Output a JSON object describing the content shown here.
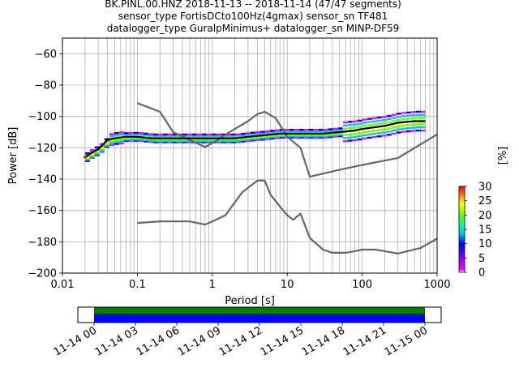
{
  "title_lines": [
    "BK.PINL.00.HNZ   2018-11-13 -- 2018-11-14  (47/47 segments)",
    "sensor_type FortisDCto100Hz(4gmax) sensor_sn TF481",
    "datalogger_type GuralpMinimus+ datalogger_sn MINP-DF59"
  ],
  "chart_data": {
    "type": "line",
    "title": "BK.PINL.00.HNZ   2018-11-13 -- 2018-11-14  (47/47 segments)",
    "xlabel": "Period [s]",
    "ylabel": "Power [dB]",
    "x_scale": "log",
    "xlim": [
      0.01,
      1000
    ],
    "ylim": [
      -200,
      -50
    ],
    "grid": true,
    "x_ticks": [
      0.01,
      0.1,
      1,
      10,
      100,
      1000
    ],
    "x_tick_labels": [
      "0.01",
      "0.1",
      "1",
      "10",
      "100",
      "1000"
    ],
    "y_ticks": [
      -200,
      -180,
      -160,
      -140,
      -120,
      -100,
      -80,
      -60
    ],
    "y_tick_labels": [
      "−200",
      "−180",
      "−160",
      "−140",
      "−120",
      "−100",
      "−80",
      "−60"
    ],
    "series": [
      {
        "style": "black",
        "x": [
          0.02,
          0.025,
          0.03,
          0.04,
          0.05,
          0.07,
          0.1,
          0.15,
          0.2,
          0.3,
          0.5,
          0.8,
          1,
          2,
          3,
          5,
          8,
          10,
          20,
          30,
          50,
          80,
          100,
          200,
          300,
          500,
          700
        ],
        "y": [
          -126,
          -123,
          -121,
          -115,
          -114,
          -113,
          -113,
          -114,
          -114,
          -114,
          -114,
          -114,
          -114,
          -114,
          -113,
          -112,
          -111,
          -111,
          -111,
          -111,
          -110,
          -109,
          -108,
          -106,
          -104,
          -103,
          -103
        ]
      },
      {
        "style": "gray",
        "x": [
          0.1,
          0.2,
          0.3,
          0.5,
          0.8,
          1,
          2,
          3,
          4,
          5,
          7,
          10,
          15,
          20,
          50,
          100,
          300,
          1000
        ],
        "y": [
          -91.5,
          -97,
          -110,
          -115,
          -119.5,
          -117,
          -108,
          -103,
          -98.5,
          -97,
          -101,
          -113,
          -120,
          -138.5,
          -134,
          -131,
          -126.5,
          -111.5
        ]
      },
      {
        "style": "gray",
        "x": [
          0.1,
          0.2,
          0.3,
          0.5,
          0.8,
          1,
          1.5,
          2.5,
          4,
          5,
          6,
          8,
          10,
          12,
          15,
          20,
          30,
          40,
          60,
          80,
          100,
          150,
          200,
          300,
          600,
          1000
        ],
        "y": [
          -168,
          -167,
          -167,
          -167,
          -169,
          -167,
          -163,
          -148.5,
          -141,
          -141,
          -150,
          -157.5,
          -163,
          -166,
          -162,
          -177.5,
          -185,
          -187,
          -187,
          -186,
          -185,
          -185,
          -186,
          -187.5,
          -184,
          -178
        ]
      }
    ],
    "colorbar": {
      "label": "[%]",
      "range": [
        0,
        30
      ],
      "ticks": [
        0,
        5,
        10,
        15,
        20,
        25,
        30
      ],
      "tick_labels": [
        "0",
        "5",
        "10",
        "15",
        "20",
        "25",
        "30"
      ]
    },
    "coverage": {
      "tick_labels": [
        "11-14 00",
        "11-14 03",
        "11-14 06",
        "11-14 09",
        "11-14 12",
        "11-14 15",
        "11-14 18",
        "11-14 21",
        "11-15 00"
      ]
    }
  },
  "colors": {
    "grid": "#b0b0b0",
    "median_line": "#000000",
    "model_line": "#666666",
    "coverage_top": "#008000",
    "coverage_bottom": "#0000ff"
  }
}
